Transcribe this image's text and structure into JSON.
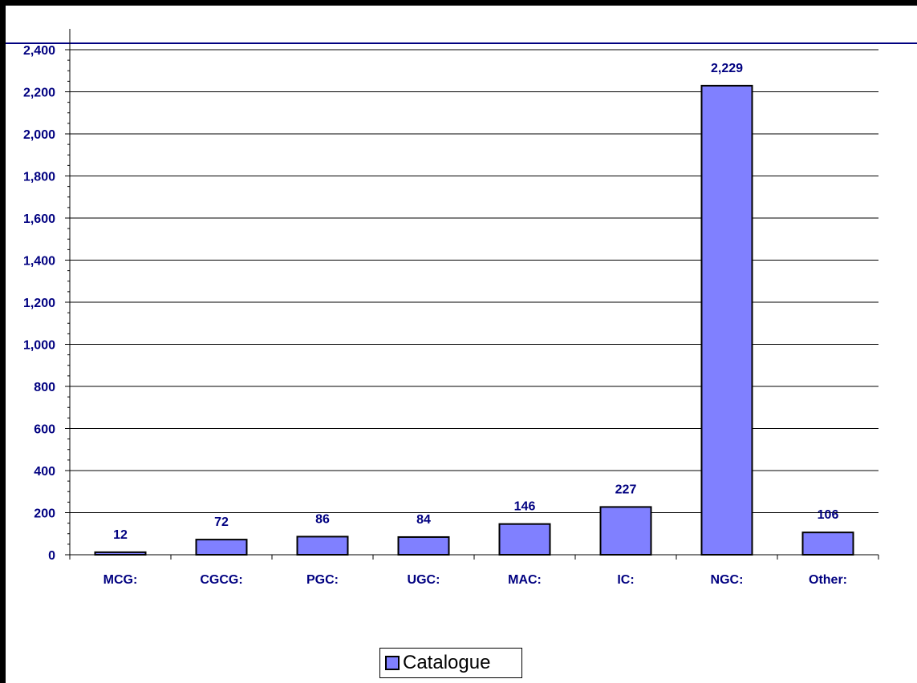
{
  "chart_data": {
    "type": "bar",
    "categories": [
      "MCG:",
      "CGCG:",
      "PGC:",
      "UGC:",
      "MAC:",
      "IC:",
      "NGC:",
      "Other:"
    ],
    "series": [
      {
        "name": "Catalogue",
        "values": [
          12,
          72,
          86,
          84,
          146,
          227,
          2229,
          106
        ]
      }
    ],
    "data_labels": [
      "12",
      "72",
      "86",
      "84",
      "146",
      "227",
      "2,229",
      "106"
    ],
    "y_ticks": [
      0,
      200,
      400,
      600,
      800,
      1000,
      1200,
      1400,
      1600,
      1800,
      2000,
      2200,
      2400
    ],
    "y_tick_labels": [
      "0",
      "200",
      "400",
      "600",
      "800",
      "1,000",
      "1,200",
      "1,400",
      "1,600",
      "1,800",
      "2,000",
      "2,200",
      "2,400"
    ],
    "ylim": [
      0,
      2400
    ],
    "grid": true,
    "legend_position": "bottom",
    "colors": {
      "bar_fill": "#8080ff",
      "bar_stroke": "#000000",
      "text": "#000080",
      "accent_line": "#000080"
    }
  },
  "legend": {
    "label": "Catalogue"
  }
}
